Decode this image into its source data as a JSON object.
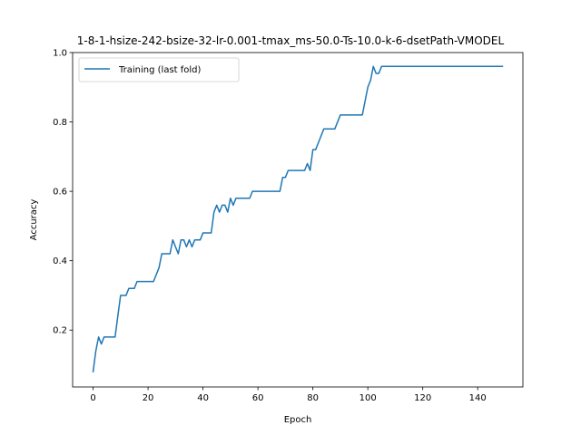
{
  "chart_data": {
    "type": "line",
    "title": "1-8-1-hsize-242-bsize-32-lr-0.001-tmax_ms-50.0-Ts-10.0-k-6-dsetPath-VMODEL",
    "xlabel": "Epoch",
    "ylabel": "Accuracy",
    "xlim": [
      -7.45,
      156.45
    ],
    "ylim": [
      0.036,
      1.0
    ],
    "xticks": [
      0,
      20,
      40,
      60,
      80,
      100,
      120,
      140
    ],
    "yticks": [
      0.2,
      0.4,
      0.6,
      0.8,
      1.0
    ],
    "xtick_labels": [
      "0",
      "20",
      "40",
      "60",
      "80",
      "100",
      "120",
      "140"
    ],
    "ytick_labels": [
      "0.2",
      "0.4",
      "0.6",
      "0.8",
      "1.0"
    ],
    "grid": false,
    "legend": {
      "placement": "upper-left",
      "entries": [
        "Training (last fold)"
      ]
    },
    "series": [
      {
        "name": "Training (last fold)",
        "color": "#1f77b4",
        "x": [
          0,
          1,
          2,
          3,
          4,
          5,
          6,
          7,
          8,
          9,
          10,
          11,
          12,
          13,
          14,
          15,
          16,
          17,
          18,
          19,
          20,
          21,
          22,
          23,
          24,
          25,
          26,
          27,
          28,
          29,
          30,
          31,
          32,
          33,
          34,
          35,
          36,
          37,
          38,
          39,
          40,
          41,
          42,
          43,
          44,
          45,
          46,
          47,
          48,
          49,
          50,
          51,
          52,
          53,
          54,
          55,
          56,
          57,
          58,
          59,
          60,
          61,
          62,
          63,
          64,
          65,
          66,
          67,
          68,
          69,
          70,
          71,
          72,
          73,
          74,
          75,
          76,
          77,
          78,
          79,
          80,
          81,
          82,
          83,
          84,
          85,
          86,
          87,
          88,
          89,
          90,
          91,
          92,
          93,
          94,
          95,
          96,
          97,
          98,
          99,
          100,
          101,
          102,
          103,
          104,
          105,
          106,
          107,
          108,
          109,
          110,
          111,
          112,
          113,
          114,
          115,
          116,
          117,
          118,
          119,
          120,
          121,
          122,
          123,
          124,
          125,
          126,
          127,
          128,
          129,
          130,
          131,
          132,
          133,
          134,
          135,
          136,
          137,
          138,
          139,
          140,
          141,
          142,
          143,
          144,
          145,
          146,
          147,
          148,
          149
        ],
        "y": [
          0.08,
          0.14,
          0.18,
          0.16,
          0.18,
          0.18,
          0.18,
          0.18,
          0.18,
          0.24,
          0.3,
          0.3,
          0.3,
          0.32,
          0.32,
          0.32,
          0.34,
          0.34,
          0.34,
          0.34,
          0.34,
          0.34,
          0.34,
          0.36,
          0.38,
          0.42,
          0.42,
          0.42,
          0.42,
          0.46,
          0.44,
          0.42,
          0.46,
          0.46,
          0.44,
          0.46,
          0.44,
          0.46,
          0.46,
          0.46,
          0.48,
          0.48,
          0.48,
          0.48,
          0.54,
          0.56,
          0.54,
          0.56,
          0.56,
          0.54,
          0.58,
          0.56,
          0.58,
          0.58,
          0.58,
          0.58,
          0.58,
          0.58,
          0.6,
          0.6,
          0.6,
          0.6,
          0.6,
          0.6,
          0.6,
          0.6,
          0.6,
          0.6,
          0.6,
          0.64,
          0.64,
          0.66,
          0.66,
          0.66,
          0.66,
          0.66,
          0.66,
          0.66,
          0.68,
          0.66,
          0.72,
          0.72,
          0.74,
          0.76,
          0.78,
          0.78,
          0.78,
          0.78,
          0.78,
          0.8,
          0.82,
          0.82,
          0.82,
          0.82,
          0.82,
          0.82,
          0.82,
          0.82,
          0.82,
          0.86,
          0.9,
          0.92,
          0.96,
          0.94,
          0.94,
          0.96,
          0.96,
          0.96,
          0.96,
          0.96,
          0.96,
          0.96,
          0.96,
          0.96,
          0.96,
          0.96,
          0.96,
          0.96,
          0.96,
          0.96,
          0.96,
          0.96,
          0.96,
          0.96,
          0.96,
          0.96,
          0.96,
          0.96,
          0.96,
          0.96,
          0.96,
          0.96,
          0.96,
          0.96,
          0.96,
          0.96,
          0.96,
          0.96,
          0.96,
          0.96,
          0.96,
          0.96,
          0.96,
          0.96,
          0.96,
          0.96,
          0.96,
          0.96,
          0.96,
          0.96
        ]
      }
    ]
  }
}
